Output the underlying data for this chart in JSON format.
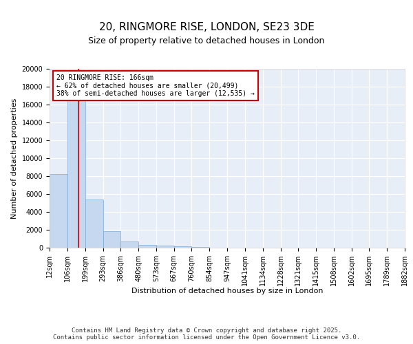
{
  "title": "20, RINGMORE RISE, LONDON, SE23 3DE",
  "subtitle": "Size of property relative to detached houses in London",
  "xlabel": "Distribution of detached houses by size in London",
  "ylabel": "Number of detached properties",
  "bin_edges": [
    12,
    106,
    199,
    293,
    386,
    480,
    573,
    667,
    760,
    854,
    947,
    1041,
    1134,
    1228,
    1321,
    1415,
    1508,
    1602,
    1695,
    1789,
    1882
  ],
  "bar_heights": [
    8200,
    16700,
    5400,
    1850,
    700,
    300,
    200,
    130,
    100,
    0,
    0,
    0,
    0,
    0,
    0,
    0,
    0,
    0,
    0,
    0
  ],
  "bar_color": "#c5d8f0",
  "bar_edge_color": "#7aaad4",
  "plot_bg_color": "#e8eef8",
  "fig_bg_color": "#ffffff",
  "grid_color": "#ffffff",
  "ylim": [
    0,
    20000
  ],
  "red_line_x": 166,
  "annotation_line1": "20 RINGMORE RISE: 166sqm",
  "annotation_line2": "← 62% of detached houses are smaller (20,499)",
  "annotation_line3": "38% of semi-detached houses are larger (12,535) →",
  "annotation_box_color": "#ffffff",
  "annotation_box_edge": "#cc0000",
  "footer_text": "Contains HM Land Registry data © Crown copyright and database right 2025.\nContains public sector information licensed under the Open Government Licence v3.0.",
  "title_fontsize": 11,
  "subtitle_fontsize": 9,
  "axis_label_fontsize": 8,
  "tick_fontsize": 7,
  "footer_fontsize": 6.5,
  "yticks": [
    0,
    2000,
    4000,
    6000,
    8000,
    10000,
    12000,
    14000,
    16000,
    18000,
    20000
  ]
}
